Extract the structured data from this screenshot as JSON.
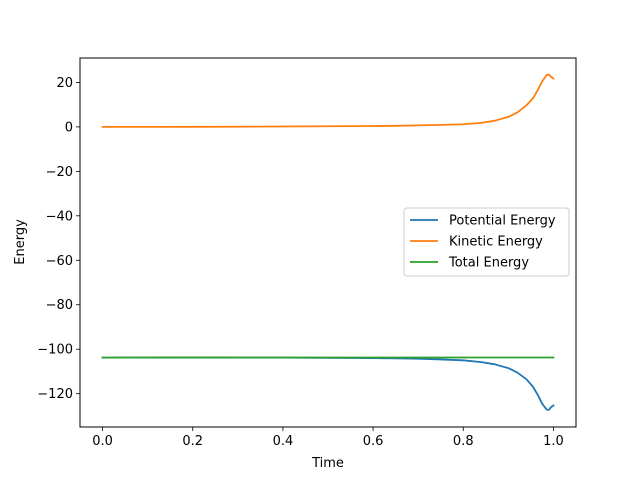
{
  "chart_data": {
    "type": "line",
    "title": "",
    "xlabel": "Time",
    "ylabel": "Energy",
    "xlim": [
      -0.05,
      1.05
    ],
    "ylim": [
      -135,
      31
    ],
    "xticks": [
      0.0,
      0.2,
      0.4,
      0.6,
      0.8,
      1.0
    ],
    "xtick_labels": [
      "0.0",
      "0.2",
      "0.4",
      "0.6",
      "0.8",
      "1.0"
    ],
    "yticks": [
      20,
      0,
      -20,
      -40,
      -60,
      -80,
      -100,
      -120
    ],
    "ytick_labels": [
      "20",
      "0",
      "−20",
      "−40",
      "−60",
      "−80",
      "−100",
      "−120"
    ],
    "grid": false,
    "legend_position": "center-right",
    "series": [
      {
        "name": "Potential Energy",
        "color": "#1f77b4",
        "x": [
          0.0,
          0.1,
          0.2,
          0.3,
          0.4,
          0.5,
          0.6,
          0.65,
          0.7,
          0.75,
          0.8,
          0.84,
          0.87,
          0.9,
          0.92,
          0.94,
          0.955,
          0.965,
          0.975,
          0.985,
          0.99,
          0.995,
          1.0
        ],
        "values": [
          -103.8,
          -103.8,
          -103.7,
          -103.8,
          -103.8,
          -103.9,
          -104.0,
          -104.1,
          -104.3,
          -104.6,
          -105.0,
          -105.8,
          -106.8,
          -108.5,
          -110.5,
          -113.5,
          -117.0,
          -120.5,
          -124.5,
          -127.2,
          -127.3,
          -126.0,
          -125.3
        ]
      },
      {
        "name": "Kinetic Energy",
        "color": "#ff7f0e",
        "x": [
          0.0,
          0.1,
          0.2,
          0.3,
          0.4,
          0.5,
          0.6,
          0.65,
          0.7,
          0.75,
          0.8,
          0.84,
          0.87,
          0.9,
          0.92,
          0.94,
          0.955,
          0.965,
          0.975,
          0.985,
          0.99,
          0.995,
          1.0
        ],
        "values": [
          0.0,
          0.0,
          0.05,
          0.1,
          0.2,
          0.3,
          0.4,
          0.5,
          0.7,
          0.9,
          1.2,
          1.8,
          2.8,
          4.5,
          6.5,
          9.7,
          13.0,
          16.5,
          20.5,
          23.4,
          23.5,
          22.5,
          21.7
        ]
      },
      {
        "name": "Total Energy",
        "color": "#2ca02c",
        "x": [
          0.0,
          0.1,
          0.2,
          0.3,
          0.4,
          0.5,
          0.6,
          0.7,
          0.8,
          0.9,
          1.0
        ],
        "values": [
          -103.8,
          -103.75,
          -103.7,
          -103.75,
          -103.75,
          -103.75,
          -103.75,
          -103.75,
          -103.75,
          -103.75,
          -103.75
        ]
      }
    ]
  }
}
